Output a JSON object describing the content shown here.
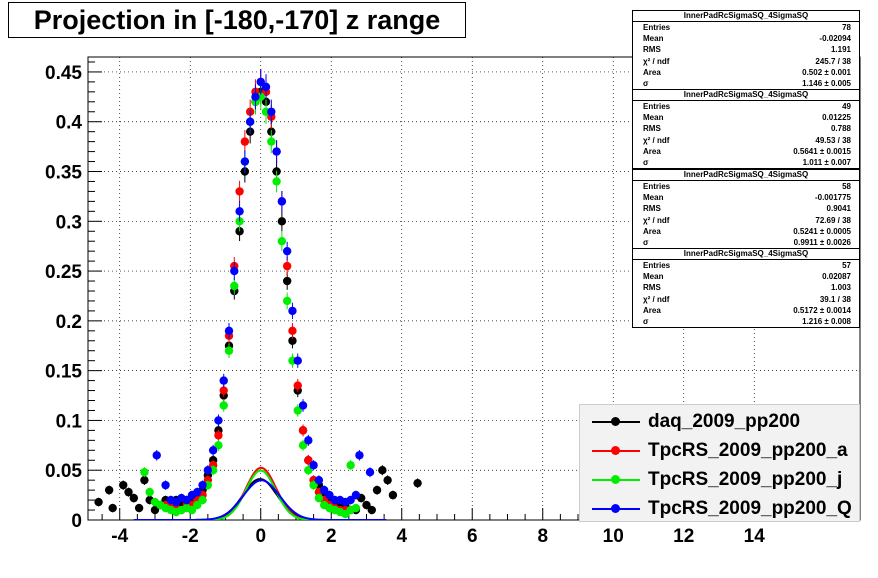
{
  "title": "Projection in [-180,-170] z range",
  "chart_data": {
    "type": "scatter",
    "xlim": [
      -4.9,
      17.0
    ],
    "ylim": [
      0,
      0.465
    ],
    "x_ticks": [
      -4,
      -2,
      0,
      2,
      4,
      6,
      8,
      10,
      12,
      14
    ],
    "x_tick_labels": [
      "-4",
      "-2",
      "0",
      "2",
      "4",
      "6",
      "8",
      "10",
      "12",
      "14"
    ],
    "y_ticks": [
      0,
      0.05,
      0.1,
      0.15,
      0.2,
      0.25,
      0.3,
      0.35,
      0.4,
      0.45
    ],
    "y_tick_labels": [
      "0",
      "0.05",
      "0.1",
      "0.15",
      "0.2",
      "0.25",
      "0.3",
      "0.35",
      "0.4",
      "0.45"
    ],
    "grid": true,
    "legend_position": "bottom-right",
    "series": [
      {
        "name": "daq_2009_pp200",
        "color": "#000000",
        "fit_sigma": 1.146,
        "fit_mean": -0.02,
        "points": [
          [
            -4.6,
            0.018
          ],
          [
            -4.3,
            0.03
          ],
          [
            -4.2,
            0.012
          ],
          [
            -3.9,
            0.035
          ],
          [
            -3.75,
            0.028
          ],
          [
            -3.6,
            0.022
          ],
          [
            -3.45,
            0.012
          ],
          [
            -3.3,
            0.04
          ],
          [
            -3.15,
            0.02
          ],
          [
            -3.0,
            0.01
          ],
          [
            -2.85,
            0.015
          ],
          [
            -2.7,
            0.02
          ],
          [
            -2.55,
            0.012
          ],
          [
            -2.4,
            0.02
          ],
          [
            -2.25,
            0.015
          ],
          [
            -2.1,
            0.02
          ],
          [
            -1.95,
            0.02
          ],
          [
            -1.8,
            0.025
          ],
          [
            -1.65,
            0.03
          ],
          [
            -1.5,
            0.045
          ],
          [
            -1.35,
            0.06
          ],
          [
            -1.2,
            0.09
          ],
          [
            -1.05,
            0.125
          ],
          [
            -0.9,
            0.175
          ],
          [
            -0.75,
            0.23
          ],
          [
            -0.6,
            0.29
          ],
          [
            -0.45,
            0.35
          ],
          [
            -0.3,
            0.39
          ],
          [
            -0.15,
            0.42
          ],
          [
            0.0,
            0.43
          ],
          [
            0.15,
            0.42
          ],
          [
            0.3,
            0.39
          ],
          [
            0.45,
            0.35
          ],
          [
            0.6,
            0.3
          ],
          [
            0.75,
            0.24
          ],
          [
            0.9,
            0.18
          ],
          [
            1.05,
            0.13
          ],
          [
            1.2,
            0.09
          ],
          [
            1.35,
            0.06
          ],
          [
            1.5,
            0.04
          ],
          [
            1.65,
            0.035
          ],
          [
            1.8,
            0.025
          ],
          [
            1.95,
            0.022
          ],
          [
            2.1,
            0.015
          ],
          [
            2.25,
            0.012
          ],
          [
            2.4,
            0.015
          ],
          [
            2.55,
            0.01
          ],
          [
            2.7,
            0.01
          ],
          [
            2.85,
            0.022
          ],
          [
            3.0,
            0.015
          ],
          [
            3.15,
            0.01
          ],
          [
            3.3,
            0.03
          ],
          [
            3.45,
            0.05
          ],
          [
            3.6,
            0.04
          ],
          [
            3.75,
            0.025
          ],
          [
            4.45,
            0.037
          ]
        ]
      },
      {
        "name": "TpcRS_2009_pp200_a",
        "color": "#ff0000",
        "fit_sigma": 1.011,
        "fit_mean": 0.01,
        "points": [
          [
            -2.7,
            0.015
          ],
          [
            -2.55,
            0.012
          ],
          [
            -2.4,
            0.012
          ],
          [
            -2.25,
            0.01
          ],
          [
            -2.1,
            0.015
          ],
          [
            -1.95,
            0.015
          ],
          [
            -1.8,
            0.02
          ],
          [
            -1.65,
            0.025
          ],
          [
            -1.5,
            0.04
          ],
          [
            -1.35,
            0.055
          ],
          [
            -1.2,
            0.085
          ],
          [
            -1.05,
            0.13
          ],
          [
            -0.9,
            0.185
          ],
          [
            -0.75,
            0.255
          ],
          [
            -0.6,
            0.33
          ],
          [
            -0.45,
            0.38
          ],
          [
            -0.3,
            0.41
          ],
          [
            -0.15,
            0.43
          ],
          [
            0.0,
            0.44
          ],
          [
            0.15,
            0.43
          ],
          [
            0.3,
            0.405
          ],
          [
            0.45,
            0.37
          ],
          [
            0.6,
            0.32
          ],
          [
            0.75,
            0.255
          ],
          [
            0.9,
            0.19
          ],
          [
            1.05,
            0.135
          ],
          [
            1.2,
            0.09
          ],
          [
            1.35,
            0.06
          ],
          [
            1.5,
            0.04
          ],
          [
            1.65,
            0.028
          ],
          [
            1.8,
            0.02
          ],
          [
            1.95,
            0.015
          ],
          [
            2.1,
            0.012
          ],
          [
            2.25,
            0.01
          ],
          [
            2.4,
            0.01
          ]
        ]
      },
      {
        "name": "TpcRS_2009_pp200_j",
        "color": "#00ee00",
        "fit_sigma": 0.9911,
        "fit_mean": 0.0,
        "points": [
          [
            -3.3,
            0.048
          ],
          [
            -3.15,
            0.028
          ],
          [
            -3.0,
            0.018
          ],
          [
            -2.85,
            0.015
          ],
          [
            -2.7,
            0.012
          ],
          [
            -2.55,
            0.01
          ],
          [
            -2.4,
            0.008
          ],
          [
            -2.25,
            0.01
          ],
          [
            -2.1,
            0.012
          ],
          [
            -1.95,
            0.01
          ],
          [
            -1.8,
            0.015
          ],
          [
            -1.65,
            0.02
          ],
          [
            -1.5,
            0.035
          ],
          [
            -1.35,
            0.05
          ],
          [
            -1.2,
            0.075
          ],
          [
            -1.05,
            0.115
          ],
          [
            -0.9,
            0.17
          ],
          [
            -0.75,
            0.235
          ],
          [
            -0.6,
            0.3
          ],
          [
            -0.45,
            0.36
          ],
          [
            -0.3,
            0.4
          ],
          [
            -0.15,
            0.42
          ],
          [
            0.0,
            0.425
          ],
          [
            0.15,
            0.41
          ],
          [
            0.3,
            0.38
          ],
          [
            0.45,
            0.34
          ],
          [
            0.6,
            0.28
          ],
          [
            0.75,
            0.22
          ],
          [
            0.9,
            0.16
          ],
          [
            1.05,
            0.11
          ],
          [
            1.2,
            0.075
          ],
          [
            1.35,
            0.05
          ],
          [
            1.5,
            0.035
          ],
          [
            1.65,
            0.022
          ],
          [
            1.8,
            0.015
          ],
          [
            1.95,
            0.012
          ],
          [
            2.1,
            0.01
          ],
          [
            2.25,
            0.008
          ],
          [
            2.4,
            0.006
          ],
          [
            2.55,
            0.01
          ],
          [
            2.7,
            0.012
          ],
          [
            2.55,
            0.055
          ]
        ]
      },
      {
        "name": "TpcRS_2009_pp200_Q",
        "color": "#0000ff",
        "fit_sigma": 1.216,
        "fit_mean": 0.02,
        "points": [
          [
            -2.95,
            0.065
          ],
          [
            -2.7,
            0.035
          ],
          [
            -2.55,
            0.02
          ],
          [
            -2.4,
            0.018
          ],
          [
            -2.25,
            0.022
          ],
          [
            -2.1,
            0.02
          ],
          [
            -1.95,
            0.025
          ],
          [
            -1.8,
            0.028
          ],
          [
            -1.65,
            0.035
          ],
          [
            -1.5,
            0.05
          ],
          [
            -1.35,
            0.07
          ],
          [
            -1.2,
            0.1
          ],
          [
            -1.05,
            0.14
          ],
          [
            -0.9,
            0.19
          ],
          [
            -0.75,
            0.25
          ],
          [
            -0.6,
            0.31
          ],
          [
            -0.45,
            0.36
          ],
          [
            -0.3,
            0.4
          ],
          [
            -0.15,
            0.425
          ],
          [
            0.0,
            0.44
          ],
          [
            0.15,
            0.435
          ],
          [
            0.3,
            0.41
          ],
          [
            0.45,
            0.37
          ],
          [
            0.6,
            0.32
          ],
          [
            0.75,
            0.27
          ],
          [
            0.9,
            0.21
          ],
          [
            1.05,
            0.16
          ],
          [
            1.2,
            0.115
          ],
          [
            1.35,
            0.08
          ],
          [
            1.5,
            0.055
          ],
          [
            1.65,
            0.04
          ],
          [
            1.8,
            0.03
          ],
          [
            1.95,
            0.025
          ],
          [
            2.1,
            0.02
          ],
          [
            2.25,
            0.02
          ],
          [
            2.4,
            0.018
          ],
          [
            2.55,
            0.02
          ],
          [
            2.7,
            0.025
          ],
          [
            2.8,
            0.065
          ],
          [
            3.1,
            0.048
          ]
        ]
      }
    ]
  },
  "stats": [
    {
      "title": "InnerPadRcSigmaSQ_4SigmaSQ",
      "rows": [
        {
          "label": "Entries",
          "value": "78"
        },
        {
          "label": "Mean",
          "value": "-0.02094"
        },
        {
          "label": "RMS",
          "value": "1.191"
        },
        {
          "label": "χ² / ndf",
          "value": "245.7 / 38"
        },
        {
          "label": "Area",
          "value": "0.502 ± 0.001"
        },
        {
          "label": "σ",
          "value": "1.146 ± 0.005"
        }
      ]
    },
    {
      "title": "InnerPadRcSigmaSQ_4SigmaSQ",
      "rows": [
        {
          "label": "Entries",
          "value": "49"
        },
        {
          "label": "Mean",
          "value": "0.01225"
        },
        {
          "label": "RMS",
          "value": "0.788"
        },
        {
          "label": "χ² / ndf",
          "value": "49.53 / 38"
        },
        {
          "label": "Area",
          "value": "0.5641 ± 0.0015"
        },
        {
          "label": "σ",
          "value": "1.011 ± 0.007"
        }
      ]
    },
    {
      "title": "InnerPadRcSigmaSQ_4SigmaSQ",
      "rows": [
        {
          "label": "Entries",
          "value": "58"
        },
        {
          "label": "Mean",
          "value": "-0.001775"
        },
        {
          "label": "RMS",
          "value": "0.9041"
        },
        {
          "label": "χ² / ndf",
          "value": "72.69 / 38"
        },
        {
          "label": "Area",
          "value": "0.5241 ± 0.0005"
        },
        {
          "label": "σ",
          "value": "0.9911 ± 0.0026"
        }
      ]
    },
    {
      "title": "InnerPadRcSigmaSQ_4SigmaSQ",
      "rows": [
        {
          "label": "Entries",
          "value": "57"
        },
        {
          "label": "Mean",
          "value": "0.02087"
        },
        {
          "label": "RMS",
          "value": "1.003"
        },
        {
          "label": "χ² / ndf",
          "value": "39.1 / 38"
        },
        {
          "label": "Area",
          "value": "0.5172 ± 0.0014"
        },
        {
          "label": "σ",
          "value": "1.216 ± 0.008"
        }
      ]
    }
  ],
  "legend": [
    {
      "label": "daq_2009_pp200",
      "color": "#000000"
    },
    {
      "label": "TpcRS_2009_pp200_a",
      "color": "#ff0000"
    },
    {
      "label": "TpcRS_2009_pp200_j",
      "color": "#00ee00"
    },
    {
      "label": "TpcRS_2009_pp200_Q",
      "color": "#0000ff"
    }
  ]
}
